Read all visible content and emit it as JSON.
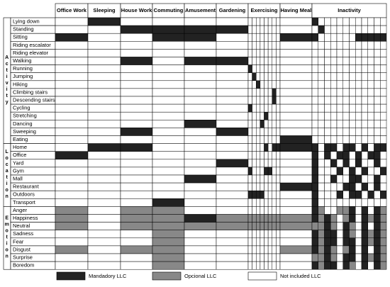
{
  "header": {
    "columns": [
      "Office Work",
      "Sleeping",
      "House Work",
      "Commuting",
      "Amusement",
      "Gardening",
      "Exercising",
      "Having Meal",
      "Inactivity"
    ]
  },
  "groups": [
    {
      "label": "Activity",
      "rows": [
        {
          "label": "Lying down",
          "cells": "010000000000000100000000000"
        },
        {
          "label": "Standing",
          "cells": "001111000000000010000000000"
        },
        {
          "label": "Sitting",
          "cells": "100110000000001100000011111"
        },
        {
          "label": "Riding escalator",
          "cells": "000000000000000000000000000"
        },
        {
          "label": "Riding elevator",
          "cells": "000000000000000000000000000"
        },
        {
          "label": "Walking",
          "cells": "001011000000000000000000000"
        },
        {
          "label": "Running",
          "cells": "000000100000000000000000000"
        },
        {
          "label": "Jumping",
          "cells": "000000010000000000000000000"
        },
        {
          "label": "Hiking",
          "cells": "000000001000000000000000000"
        },
        {
          "label": "Climbing stairs",
          "cells": "000000000000100000000000000"
        },
        {
          "label": "Descending stairs",
          "cells": "000000000000100000000000000"
        },
        {
          "label": "Cycling",
          "cells": "000000100000000000000000000"
        },
        {
          "label": "Stretching",
          "cells": "000000000010000000000000000"
        },
        {
          "label": "Dancing",
          "cells": "000010000100000000000000000"
        },
        {
          "label": "Sweeping",
          "cells": "001001000000000000000000000"
        },
        {
          "label": "Eating",
          "cells": "000000000000001000000000000"
        }
      ]
    },
    {
      "label": "Location",
      "rows": [
        {
          "label": "Home",
          "cells": "011000000010111101101101011"
        },
        {
          "label": "Office",
          "cells": "100000000000000101011010110"
        },
        {
          "label": "Yard",
          "cells": "000001000000000100101010010"
        },
        {
          "label": "Gym",
          "cells": "000000100011000100010101001"
        },
        {
          "label": "Mall",
          "cells": "000010000000000100100110010"
        },
        {
          "label": "Restaurant",
          "cells": "000000000000001100001101010"
        },
        {
          "label": "Outdoors",
          "cells": "000000111100000100010110101"
        },
        {
          "label": "Transport",
          "cells": "000100000000000100000000000"
        }
      ]
    },
    {
      "label": "Emotion",
      "rows": [
        {
          "label": "Anger",
          "cells": "202200000000000120022101012"
        },
        {
          "label": "Happiness",
          "cells": "202212222222222121202101212"
        },
        {
          "label": "Neutral",
          "cells": "202222222222222221201201012"
        },
        {
          "label": "Sadness",
          "cells": "000200000000000121101201212"
        },
        {
          "label": "Fear",
          "cells": "000200000000000121101101212"
        },
        {
          "label": "Disgust",
          "cells": "202200000000002121202101012"
        },
        {
          "label": "Surprise",
          "cells": "000200000000000221201101212"
        },
        {
          "label": "Boredom",
          "cells": "000200000000000121101201012"
        }
      ]
    }
  ],
  "legend": [
    "Mandadory LLC",
    "Opcional LLC",
    "Not included LLC"
  ]
}
